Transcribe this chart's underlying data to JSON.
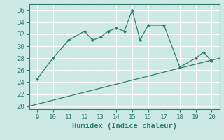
{
  "xlabel": "Humidex (Indice chaleur)",
  "bg_color": "#cce9e4",
  "grid_color": "#ffffff",
  "line_color": "#2e7d6e",
  "xlim": [
    8.5,
    20.5
  ],
  "ylim": [
    19.5,
    37
  ],
  "yticks": [
    20,
    22,
    24,
    26,
    28,
    30,
    32,
    34,
    36
  ],
  "xticks": [
    9,
    10,
    11,
    12,
    13,
    14,
    15,
    16,
    17,
    18,
    19,
    20
  ],
  "curve_x": [
    9,
    10,
    11,
    12,
    12.5,
    13,
    13.5,
    14,
    14.5,
    15,
    15.5,
    16,
    17,
    18,
    19,
    19.5,
    20
  ],
  "curve_y": [
    24.5,
    28,
    31,
    32.5,
    31,
    31.5,
    32.5,
    33,
    32.5,
    36,
    31,
    33.5,
    33.5,
    26.5,
    28,
    29,
    27.5
  ],
  "line_x": [
    8.5,
    20.5
  ],
  "line_y": [
    20.0,
    28.0
  ],
  "tick_fontsize": 6.5,
  "xlabel_fontsize": 7.5,
  "marker_size": 2.5
}
